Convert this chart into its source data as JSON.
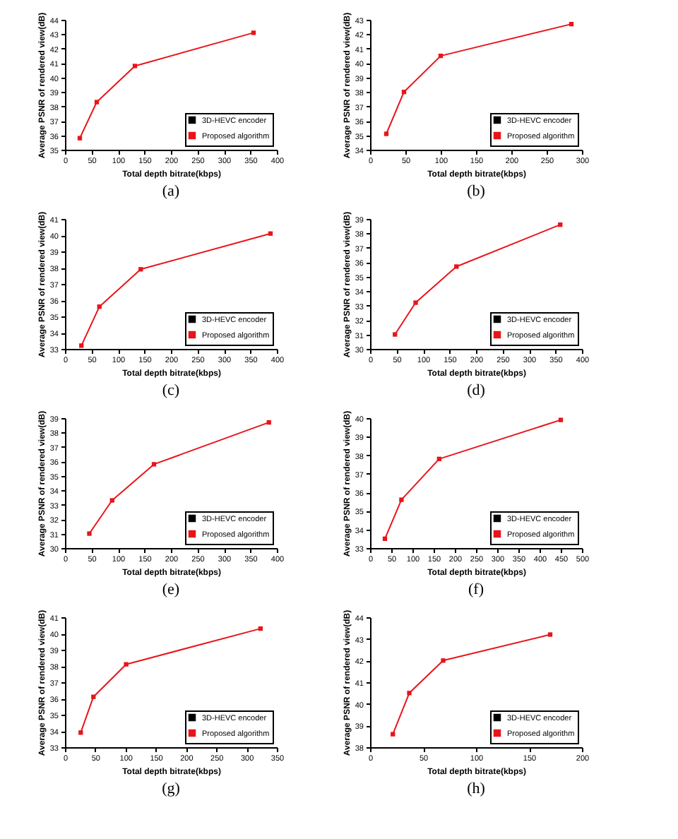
{
  "chart_data": [
    {
      "type": "line",
      "title": "(a)",
      "xlabel": "Total depth bitrate(kbps)",
      "ylabel": "Average PSNR of rendered view(dB)",
      "xlim": [
        0,
        400
      ],
      "xticks": [
        0,
        50,
        100,
        150,
        200,
        250,
        300,
        350,
        400
      ],
      "ylim": [
        35,
        44
      ],
      "yticks": [
        35,
        36,
        37,
        38,
        39,
        40,
        41,
        42,
        43,
        44
      ],
      "legend": "bottom right",
      "marker": "square",
      "grid": false,
      "x": [
        28,
        60,
        132,
        356
      ],
      "series": [
        {
          "name": "3D-HEVC encoder",
          "color": "#000000",
          "values": [
            null,
            null,
            null,
            null
          ]
        },
        {
          "name": "Proposed algorithm",
          "color": "#e8141a",
          "values": [
            35.8,
            38.3,
            40.8,
            43.1
          ]
        }
      ]
    },
    {
      "type": "line",
      "title": "(b)",
      "xlabel": "Total depth bitrate(kbps)",
      "ylabel": "Average PSNR of rendered view(dB)",
      "xlim": [
        0,
        300
      ],
      "xticks": [
        0,
        50,
        100,
        150,
        200,
        250,
        300
      ],
      "ylim": [
        34,
        43
      ],
      "yticks": [
        34,
        35,
        36,
        37,
        38,
        39,
        40,
        41,
        42,
        43
      ],
      "legend": "bottom right",
      "marker": "square",
      "grid": false,
      "x": [
        23,
        48,
        100,
        285
      ],
      "series": [
        {
          "name": "3D-HEVC encoder",
          "color": "#000000",
          "values": [
            null,
            null,
            null,
            null
          ]
        },
        {
          "name": "Proposed algorithm",
          "color": "#e8141a",
          "values": [
            35.1,
            38.0,
            40.5,
            42.7
          ]
        }
      ]
    },
    {
      "type": "line",
      "title": "(c)",
      "xlabel": "Total depth bitrate(kbps)",
      "ylabel": "Average PSNR of rendered view(dB)",
      "xlim": [
        0,
        400
      ],
      "xticks": [
        0,
        50,
        100,
        150,
        200,
        250,
        300,
        350,
        400
      ],
      "ylim": [
        33,
        41
      ],
      "yticks": [
        33,
        34,
        35,
        36,
        37,
        38,
        39,
        40,
        41
      ],
      "legend": "bottom right",
      "marker": "square",
      "grid": false,
      "x": [
        31,
        65,
        143,
        388
      ],
      "series": [
        {
          "name": "3D-HEVC encoder",
          "color": "#000000",
          "values": [
            null,
            null,
            null,
            null
          ]
        },
        {
          "name": "Proposed algorithm",
          "color": "#e8141a",
          "values": [
            33.2,
            35.6,
            37.9,
            40.1
          ]
        }
      ]
    },
    {
      "type": "line",
      "title": "(d)",
      "xlabel": "Total depth bitrate(kbps)",
      "ylabel": "Average PSNR of rendered view(dB)",
      "xlim": [
        0,
        400
      ],
      "xticks": [
        0,
        50,
        100,
        150,
        200,
        250,
        300,
        350,
        400
      ],
      "ylim": [
        30,
        39
      ],
      "yticks": [
        30,
        31,
        32,
        33,
        34,
        35,
        36,
        37,
        38,
        39
      ],
      "legend": "bottom right",
      "marker": "square",
      "grid": false,
      "x": [
        47,
        86,
        163,
        359
      ],
      "series": [
        {
          "name": "3D-HEVC encoder",
          "color": "#000000",
          "values": [
            null,
            null,
            null,
            null
          ]
        },
        {
          "name": "Proposed algorithm",
          "color": "#e8141a",
          "values": [
            31.0,
            33.2,
            35.7,
            38.6
          ]
        }
      ]
    },
    {
      "type": "line",
      "title": "(e)",
      "xlabel": "Total depth bitrate(kbps)",
      "ylabel": "Average PSNR of rendered view(dB)",
      "xlim": [
        0,
        400
      ],
      "xticks": [
        0,
        50,
        100,
        150,
        200,
        250,
        300,
        350,
        400
      ],
      "ylim": [
        30,
        39
      ],
      "yticks": [
        30,
        31,
        32,
        33,
        34,
        35,
        36,
        37,
        38,
        39
      ],
      "legend": "bottom right",
      "marker": "square",
      "grid": false,
      "x": [
        46,
        89,
        168,
        385
      ],
      "series": [
        {
          "name": "3D-HEVC encoder",
          "color": "#000000",
          "values": [
            null,
            null,
            null,
            null
          ]
        },
        {
          "name": "Proposed algorithm",
          "color": "#e8141a",
          "values": [
            31.0,
            33.3,
            35.8,
            38.7
          ]
        }
      ]
    },
    {
      "type": "line",
      "title": "(f)",
      "xlabel": "Total depth bitrate(kbps)",
      "ylabel": "Average PSNR of rendered view(dB)",
      "xlim": [
        0,
        500
      ],
      "xticks": [
        0,
        50,
        100,
        150,
        200,
        250,
        300,
        350,
        400,
        450,
        500
      ],
      "ylim": [
        33,
        40
      ],
      "yticks": [
        33,
        34,
        35,
        36,
        37,
        38,
        39,
        40
      ],
      "legend": "bottom right",
      "marker": "square",
      "grid": false,
      "x": [
        35,
        74,
        163,
        450
      ],
      "series": [
        {
          "name": "3D-HEVC encoder",
          "color": "#000000",
          "values": [
            null,
            null,
            null,
            null
          ]
        },
        {
          "name": "Proposed algorithm",
          "color": "#e8141a",
          "values": [
            33.5,
            35.6,
            37.8,
            39.9
          ]
        }
      ]
    },
    {
      "type": "line",
      "title": "(g)",
      "xlabel": "Total depth bitrate(kbps)",
      "ylabel": "Average PSNR of rendered view(dB)",
      "xlim": [
        0,
        350
      ],
      "xticks": [
        0,
        50,
        100,
        150,
        200,
        250,
        300,
        350
      ],
      "ylim": [
        33,
        41
      ],
      "yticks": [
        33,
        34,
        35,
        36,
        37,
        38,
        39,
        40,
        41
      ],
      "legend": "bottom right",
      "marker": "square",
      "grid": false,
      "x": [
        26,
        47,
        101,
        323
      ],
      "series": [
        {
          "name": "3D-HEVC encoder",
          "color": "#000000",
          "values": [
            null,
            null,
            null,
            null
          ]
        },
        {
          "name": "Proposed algorithm",
          "color": "#e8141a",
          "values": [
            33.9,
            36.1,
            38.1,
            40.3
          ]
        }
      ]
    },
    {
      "type": "line",
      "title": "(h)",
      "xlabel": "Total depth bitrate(kbps)",
      "ylabel": "Average PSNR of rendered view(dB)",
      "xlim": [
        0,
        200
      ],
      "xticks": [
        0,
        50,
        100,
        150,
        200
      ],
      "ylim": [
        38,
        44
      ],
      "yticks": [
        38,
        39,
        40,
        41,
        42,
        43,
        44
      ],
      "legend": "bottom right",
      "marker": "square",
      "grid": false,
      "x": [
        21.5,
        37,
        69,
        170
      ],
      "series": [
        {
          "name": "3D-HEVC encoder",
          "color": "#000000",
          "values": [
            null,
            null,
            null,
            null
          ]
        },
        {
          "name": "Proposed algorithm",
          "color": "#e8141a",
          "values": [
            38.6,
            40.5,
            42.0,
            43.2
          ]
        }
      ]
    }
  ]
}
